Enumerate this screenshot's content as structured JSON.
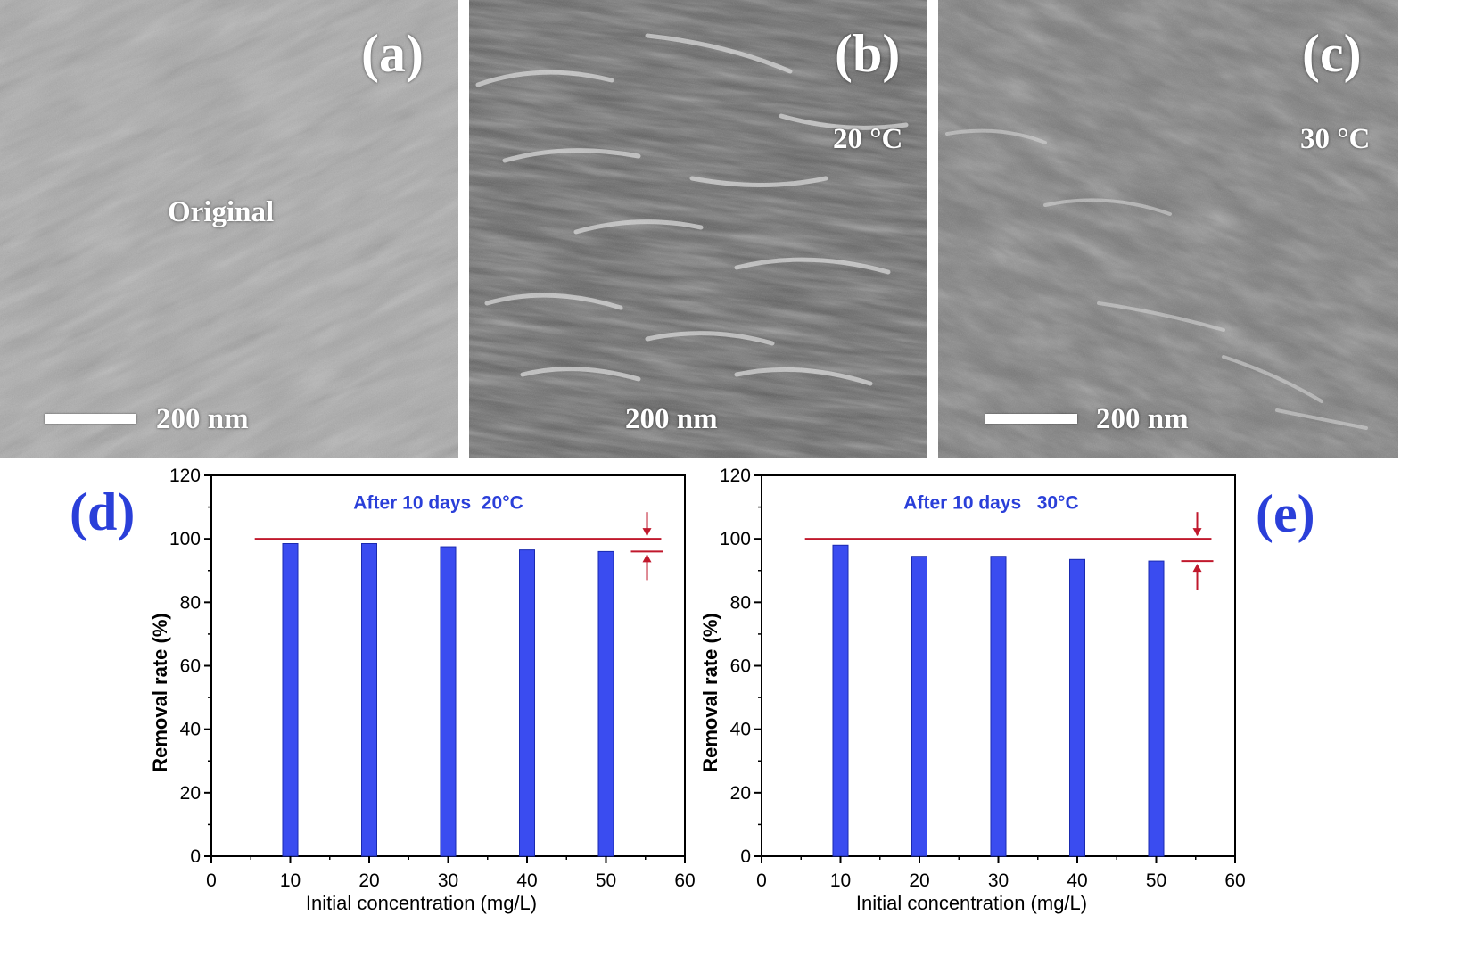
{
  "panels": [
    {
      "label": "(a)",
      "text": "Original",
      "scale": "200 nm"
    },
    {
      "label": "(b)",
      "text": "20 °C",
      "scale": "200 nm"
    },
    {
      "label": "(c)",
      "text": "30 °C",
      "scale": "200 nm"
    }
  ],
  "chart_labels": {
    "d": "(d)",
    "e": "(e)"
  },
  "colors": {
    "bar": "#3a4cf0",
    "ref_line": "#c0182c",
    "annotation": "#2a3fd9"
  },
  "chart_data": [
    {
      "type": "bar",
      "annotation": "After 10 days  20°C",
      "xlabel": "Initial concentration (mg/L)",
      "ylabel": "Removal rate (%)",
      "x": [
        10,
        20,
        30,
        40,
        50
      ],
      "values": [
        98.5,
        98.5,
        97.5,
        96.5,
        96.0
      ],
      "xlim": [
        0,
        60
      ],
      "ylim": [
        0,
        120
      ],
      "xticks": [
        0,
        10,
        20,
        30,
        40,
        50,
        60
      ],
      "yticks": [
        0,
        20,
        40,
        60,
        80,
        100,
        120
      ],
      "reference_line": 100,
      "lower_marker": 96.0
    },
    {
      "type": "bar",
      "annotation": "After 10 days   30°C",
      "xlabel": "Initial concentration (mg/L)",
      "ylabel": "Removal rate (%)",
      "x": [
        10,
        20,
        30,
        40,
        50
      ],
      "values": [
        98.0,
        94.5,
        94.5,
        93.5,
        93.0
      ],
      "xlim": [
        0,
        60
      ],
      "ylim": [
        0,
        120
      ],
      "xticks": [
        0,
        10,
        20,
        30,
        40,
        50,
        60
      ],
      "yticks": [
        0,
        20,
        40,
        60,
        80,
        100,
        120
      ],
      "reference_line": 100,
      "lower_marker": 93.0
    }
  ]
}
